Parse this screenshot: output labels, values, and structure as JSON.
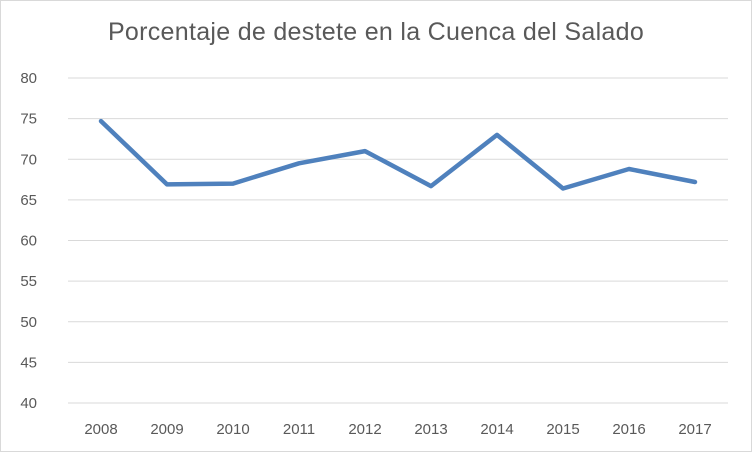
{
  "chart_data": {
    "type": "line",
    "title": "Porcentaje de destete en la Cuenca del Salado",
    "xlabel": "",
    "ylabel": "",
    "categories": [
      "2008",
      "2009",
      "2010",
      "2011",
      "2012",
      "2013",
      "2014",
      "2015",
      "2016",
      "2017"
    ],
    "series": [
      {
        "values": [
          74.7,
          66.9,
          67.0,
          69.5,
          71.0,
          66.7,
          73.0,
          66.4,
          68.8,
          67.2
        ],
        "color": "#4f81bd"
      }
    ],
    "ylim": [
      40,
      80
    ],
    "yticks": [
      "40",
      "45",
      "50",
      "55",
      "60",
      "65",
      "70",
      "75",
      "80"
    ],
    "grid": "horizontal",
    "legend": "none"
  }
}
